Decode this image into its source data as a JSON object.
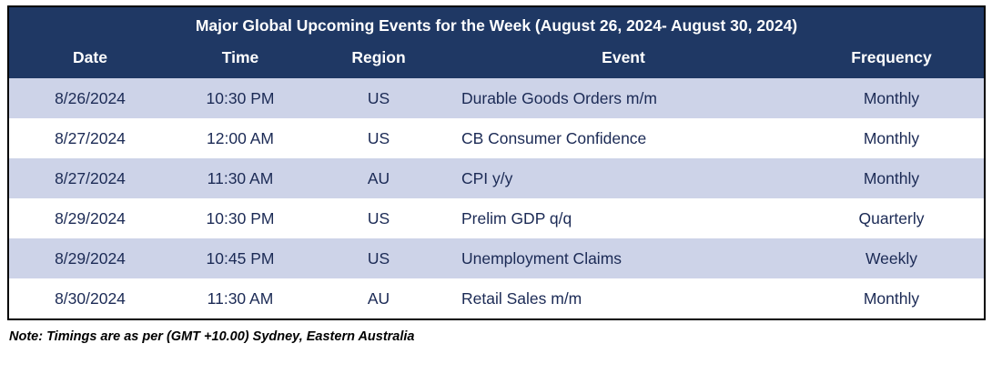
{
  "table": {
    "title": "Major Global Upcoming Events for the Week (August 26, 2024- August 30, 2024)",
    "columns": [
      "Date",
      "Time",
      "Region",
      "Event",
      "Frequency"
    ],
    "rows": [
      {
        "date": "8/26/2024",
        "time": "10:30 PM",
        "region": "US",
        "event": "Durable Goods Orders m/m",
        "frequency": "Monthly"
      },
      {
        "date": "8/27/2024",
        "time": "12:00 AM",
        "region": "US",
        "event": "CB Consumer Confidence",
        "frequency": "Monthly"
      },
      {
        "date": "8/27/2024",
        "time": "11:30 AM",
        "region": "AU",
        "event": "CPI y/y",
        "frequency": "Monthly"
      },
      {
        "date": "8/29/2024",
        "time": "10:30 PM",
        "region": "US",
        "event": "Prelim GDP q/q",
        "frequency": "Quarterly"
      },
      {
        "date": "8/29/2024",
        "time": "10:45 PM",
        "region": "US",
        "event": "Unemployment Claims",
        "frequency": "Weekly"
      },
      {
        "date": "8/30/2024",
        "time": "11:30 AM",
        "region": "AU",
        "event": "Retail Sales m/m",
        "frequency": "Monthly"
      }
    ]
  },
  "note": "Note: Timings are as per (GMT +10.00) Sydney, Eastern Australia",
  "colors": {
    "header_bg": "#1F3864",
    "header_text": "#FFFFFF",
    "row_alt_bg": "#CDD3E8",
    "row_bg": "#FFFFFF",
    "body_text": "#1B2A55"
  }
}
